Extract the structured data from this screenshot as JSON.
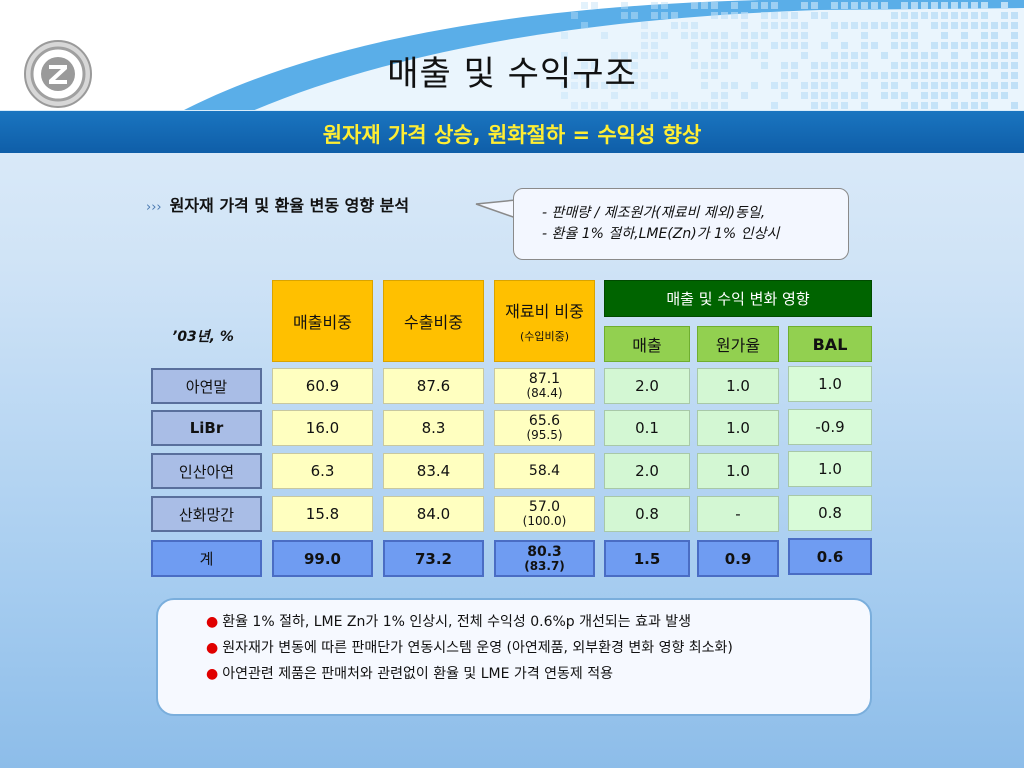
{
  "title": "매출 및 수익구조",
  "subtitle": "원자재 가격 상승, 원화절하 = 수익성 향상",
  "section": {
    "bullet": "›››",
    "label": "원자재 가격 및 환율 변동 영향 분석"
  },
  "callout": {
    "line1": "- 판매량 / 제조원가(재료비 제외)동일,",
    "line2": "- 환율 1% 절하,LME(Zn)가 1% 인상시"
  },
  "table": {
    "year_label": "’03년, %",
    "headers": {
      "sales_share": "매출비중",
      "export_share": "수출비중",
      "material_share": "재료비 비중",
      "material_share_sub": "(수입비중)",
      "impact_group": "매출 및 수익 변화 영향",
      "sales": "매출",
      "cost_rate": "원가율",
      "bal": "BAL"
    },
    "rows": [
      {
        "name": "아연말",
        "sales_share": "60.9",
        "export_share": "87.6",
        "material": "87.1",
        "material_sub": "(84.4)",
        "sales": "2.0",
        "cost_rate": "1.0",
        "bal": "1.0"
      },
      {
        "name": "LiBr",
        "sales_share": "16.0",
        "export_share": "8.3",
        "material": "65.6",
        "material_sub": "(95.5)",
        "sales": "0.1",
        "cost_rate": "1.0",
        "bal": "-0.9"
      },
      {
        "name": "인산아연",
        "sales_share": "6.3",
        "export_share": "83.4",
        "material": "58.4",
        "material_sub": "",
        "sales": "2.0",
        "cost_rate": "1.0",
        "bal": "1.0"
      },
      {
        "name": "산화망간",
        "sales_share": "15.8",
        "export_share": "84.0",
        "material": "57.0",
        "material_sub": "(100.0)",
        "sales": "0.8",
        "cost_rate": "-",
        "bal": "0.8"
      }
    ],
    "total": {
      "name": "계",
      "sales_share": "99.0",
      "export_share": "73.2",
      "material": "80.3",
      "material_sub": "(83.7)",
      "sales": "1.5",
      "cost_rate": "0.9",
      "bal": "0.6"
    }
  },
  "notes": [
    "환율 1% 절하, LME Zn가 1% 인상시, 전체 수익성 0.6%p 개선되는 효과 발생",
    "원자재가 변동에 따른 판매단가 연동시스템 운영 (아연제품, 외부환경 변화 영향 최소화)",
    "아연관련 제품은 판매처와 관련없이 환율 및 LME 가격 연동제 적용"
  ],
  "colors": {
    "band": "#1a75c0",
    "subtitle": "#ffee33",
    "gold": "#ffc000",
    "dark_green": "#006400",
    "lime": "#92d050",
    "note_bullet": "#e00000"
  }
}
